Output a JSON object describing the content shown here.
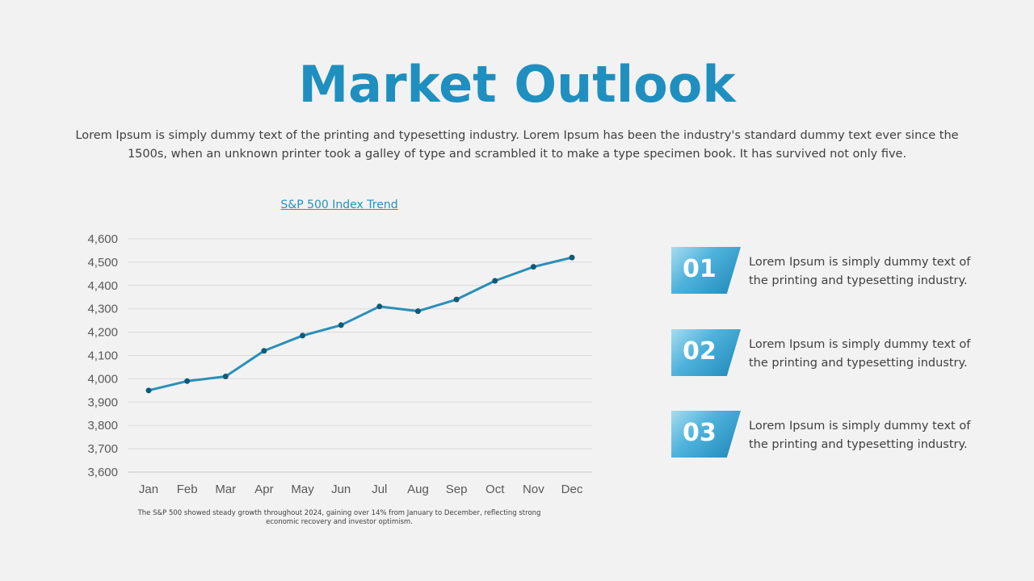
{
  "title": "Market Outlook",
  "intro": "Lorem Ipsum is simply dummy text of the printing and typesetting industry. Lorem Ipsum has been the industry's standard dummy text ever since the 1500s, when an unknown printer took a galley of type and scrambled it to make a type specimen book. It has survived not only five.",
  "chart_data": {
    "type": "line",
    "title": "S&P 500 Index Trend",
    "categories": [
      "Jan",
      "Feb",
      "Mar",
      "Apr",
      "May",
      "Jun",
      "Jul",
      "Aug",
      "Sep",
      "Oct",
      "Nov",
      "Dec"
    ],
    "values": [
      3950,
      3990,
      4010,
      4120,
      4185,
      4230,
      4310,
      4290,
      4340,
      4420,
      4480,
      4520
    ],
    "ylim": [
      3600,
      4600
    ],
    "yticks": [
      "3,600",
      "3,700",
      "3,800",
      "3,900",
      "4,000",
      "4,100",
      "4,200",
      "4,300",
      "4,400",
      "4,500",
      "4,600"
    ],
    "grid": true,
    "line_color": "#2a8fb8",
    "marker_color": "#0e5a78"
  },
  "caption": "The S&P 500 showed steady growth throughout 2024, gaining over 14% from January to December, reflecting strong economic recovery and investor optimism.",
  "items": [
    {
      "number": "01",
      "text": "Lorem Ipsum is simply dummy text of the printing and typesetting industry."
    },
    {
      "number": "02",
      "text": "Lorem Ipsum is simply dummy text of the printing and typesetting industry."
    },
    {
      "number": "03",
      "text": "Lorem Ipsum is simply dummy text of the printing and typesetting industry."
    }
  ]
}
